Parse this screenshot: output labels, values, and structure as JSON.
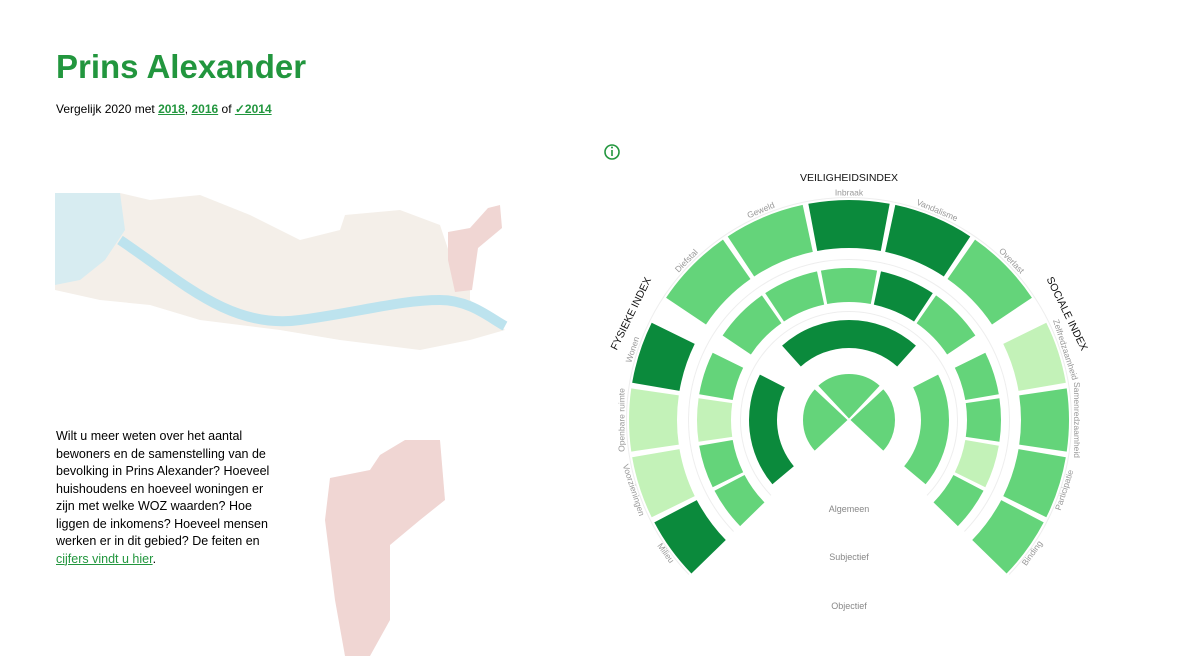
{
  "header": {
    "title": "Prins Alexander",
    "compare": {
      "prefix": "Vergelijk 2020 met",
      "links": [
        "2018",
        "2016",
        "✓2014"
      ],
      "separators": [
        ",",
        "of"
      ]
    }
  },
  "info": {
    "text": "Wilt u meer weten over het aantal bewoners en de samenstelling van de bevolking in Prins Alexander? Hoeveel huishoudens en hoeveel woningen er zijn met welke WOZ waarden? Hoe liggen de inkomens? Hoeveel mensen werken er in dit gebied? De feiten en",
    "link": "cijfers vindt u hier",
    "end": "."
  },
  "diagram": {
    "rings": [
      "Algemeen",
      "Subjectief",
      "Objectief"
    ],
    "indices": [
      {
        "name": "FYSIEKE INDEX",
        "core_color": "#64d47a",
        "general_color": "#0b8a3c",
        "segments": [
          {
            "label": "Milieu",
            "color": "#0b8a3c",
            "subjective_color": "#64d47a"
          },
          {
            "label": "Voorzieningen",
            "color": "#c3f2b8",
            "subjective_color": "#64d47a"
          },
          {
            "label": "Openbare ruimte",
            "color": "#c3f2b8",
            "subjective_color": "#c3f2b8"
          },
          {
            "label": "Wonen",
            "color": "#0b8a3c",
            "subjective_color": "#64d47a"
          }
        ]
      },
      {
        "name": "VEILIGHEIDSINDEX",
        "core_color": "#64d47a",
        "general_color": "#0b8a3c",
        "segments": [
          {
            "label": "Diefstal",
            "color": "#64d47a",
            "subjective_color": "#64d47a"
          },
          {
            "label": "Geweld",
            "color": "#64d47a",
            "subjective_color": "#64d47a"
          },
          {
            "label": "Inbraak",
            "color": "#0b8a3c",
            "subjective_color": "#64d47a"
          },
          {
            "label": "Vandalisme",
            "color": "#0b8a3c",
            "subjective_color": "#0b8a3c"
          },
          {
            "label": "Overlast",
            "color": "#64d47a",
            "subjective_color": "#64d47a"
          }
        ]
      },
      {
        "name": "SOCIALE INDEX",
        "core_color": "#64d47a",
        "general_color": "#64d47a",
        "segments": [
          {
            "label": "Zelfredzaamheid",
            "color": "#c3f2b8",
            "subjective_color": "#64d47a"
          },
          {
            "label": "Samenredzaamheid",
            "color": "#64d47a",
            "subjective_color": "#64d47a"
          },
          {
            "label": "Participatie",
            "color": "#64d47a",
            "subjective_color": "#c3f2b8"
          },
          {
            "label": "Binding",
            "color": "#64d47a",
            "subjective_color": "#64d47a"
          }
        ]
      }
    ]
  }
}
